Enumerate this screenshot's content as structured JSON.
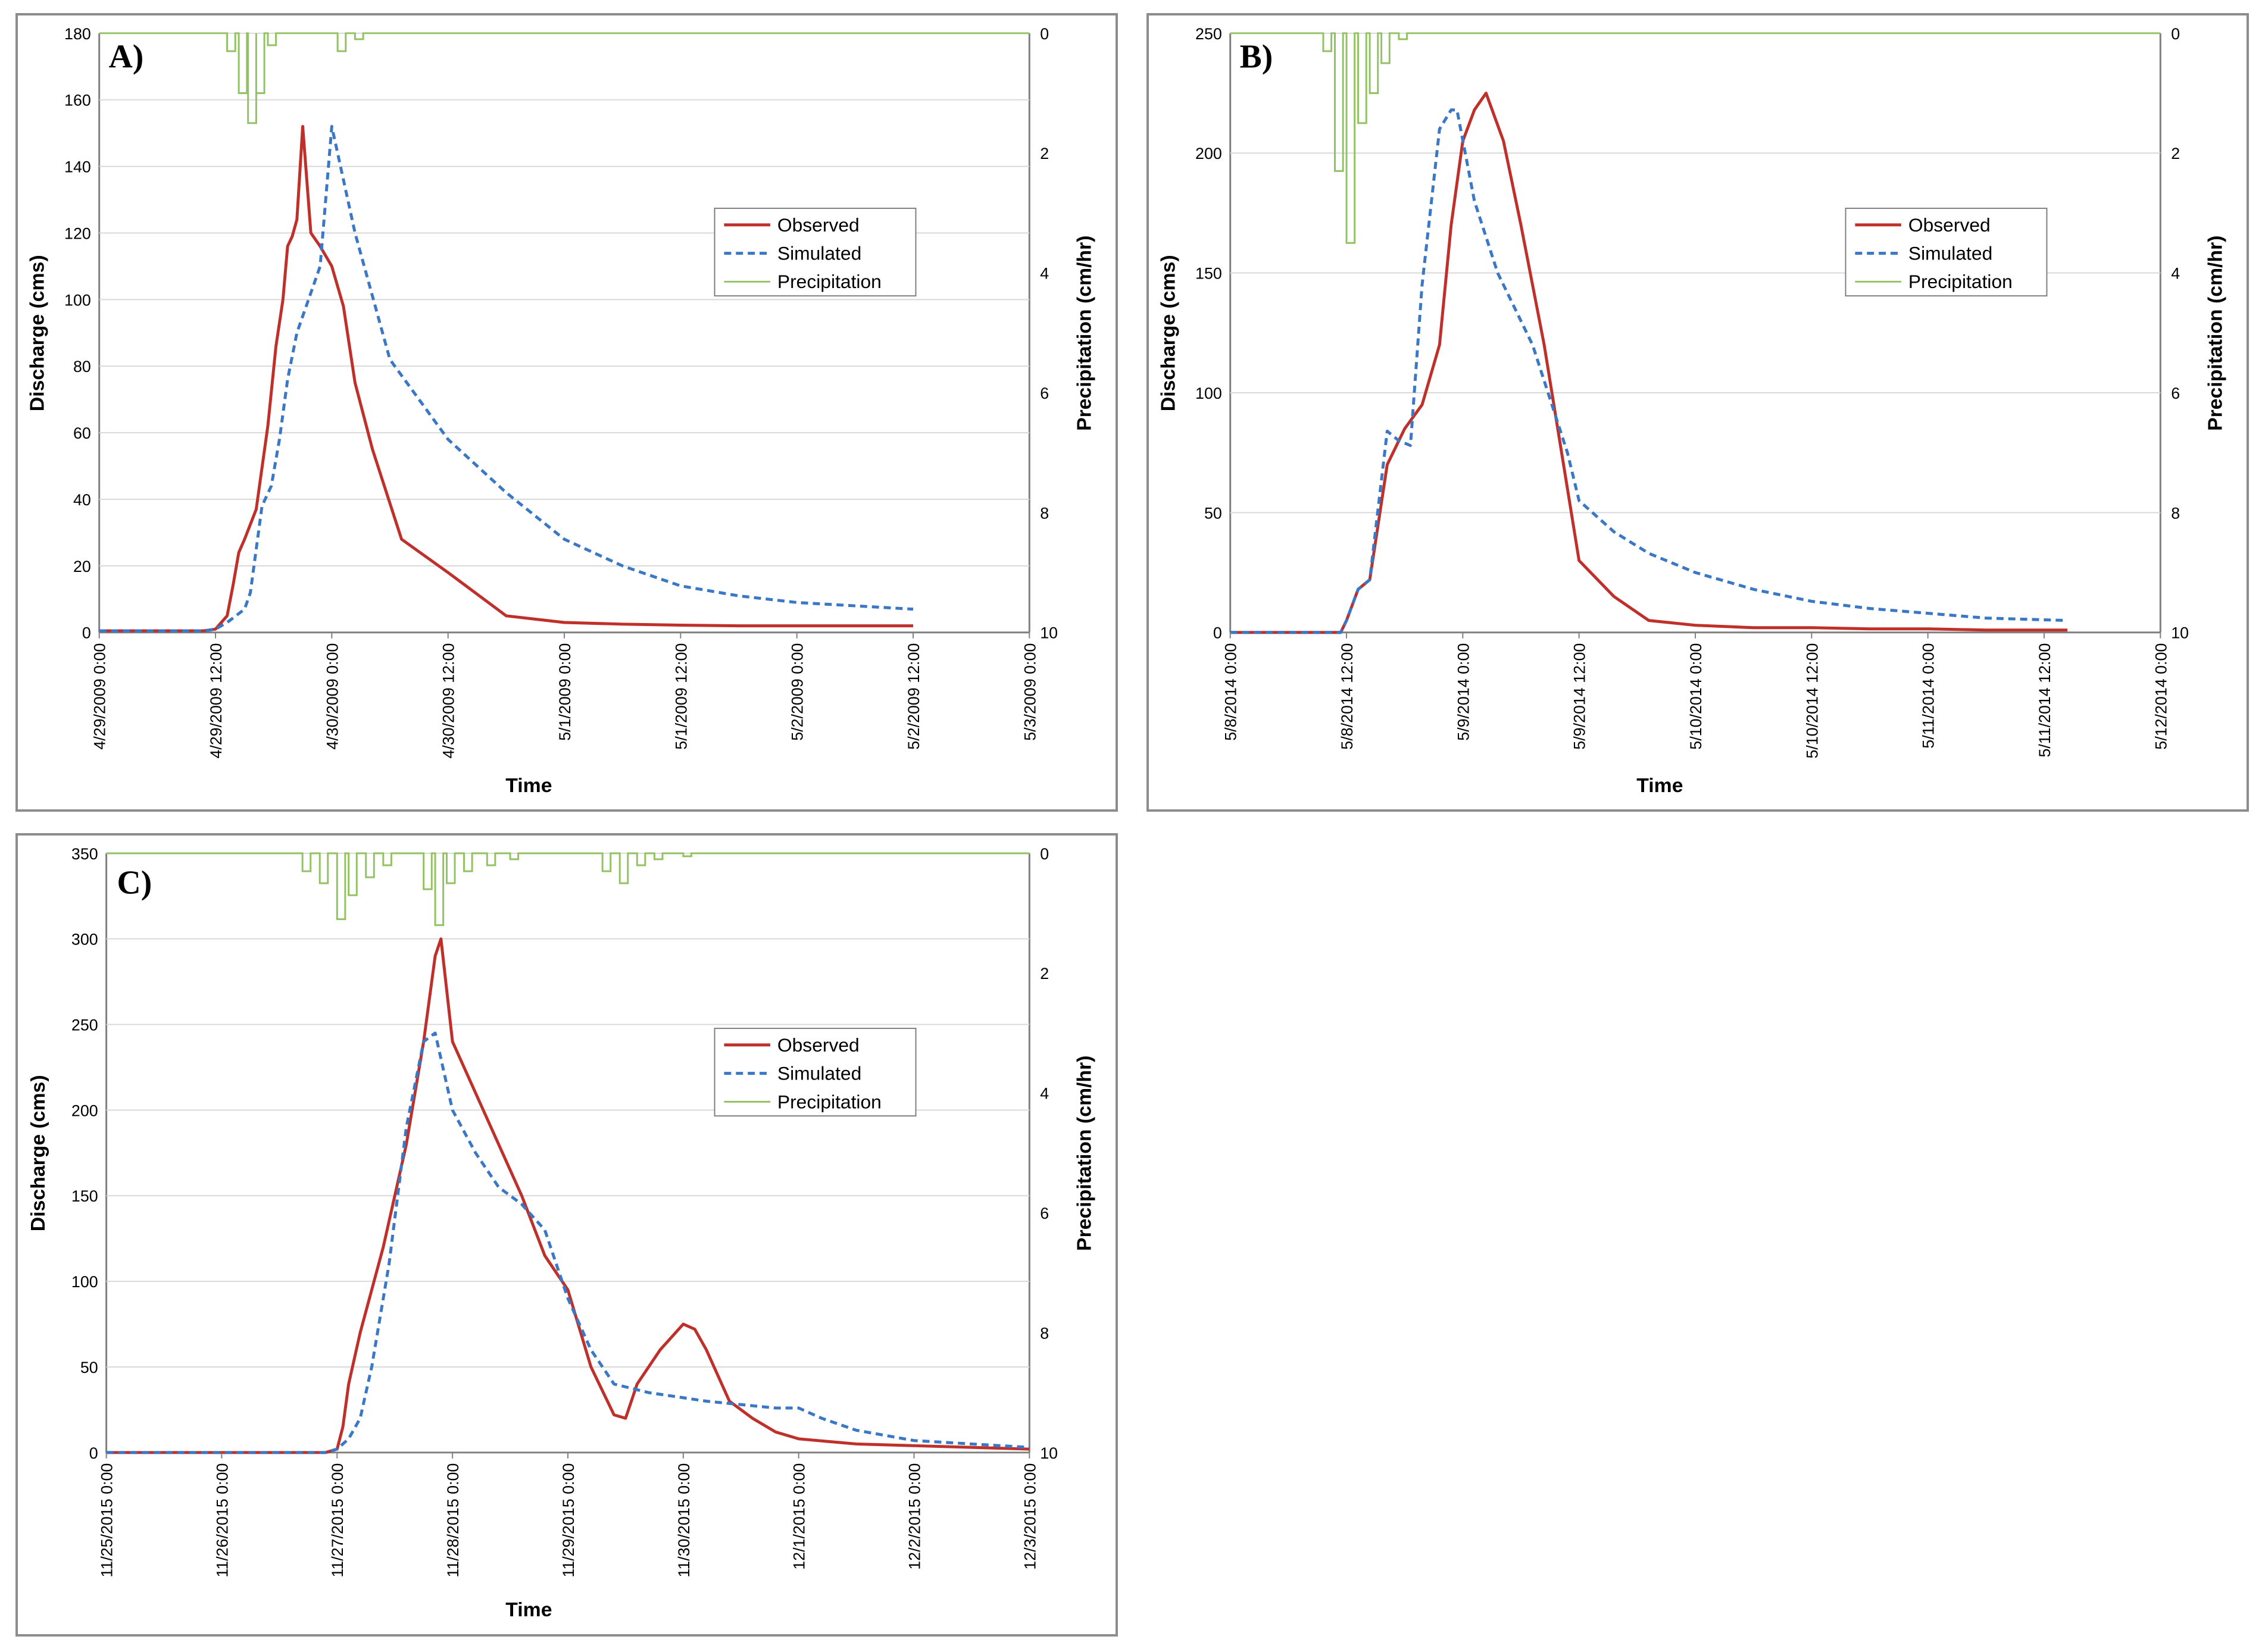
{
  "colors": {
    "observed": "#c0302b",
    "simulated": "#3a78c6",
    "precipitation": "#92c261",
    "grid": "#d9d9d9",
    "axis": "#7f7f7f"
  },
  "chart_data": [
    {
      "id": "A",
      "panel_label": "A)",
      "type": "line",
      "xlabel": "Time",
      "ylabel": "Discharge (cms)",
      "ylabel_right": "Precipitation (cm/hr)",
      "ylim": [
        0,
        180
      ],
      "yticks": [
        "0",
        "20",
        "40",
        "60",
        "80",
        "100",
        "120",
        "140",
        "160",
        "180"
      ],
      "y2lim": [
        0,
        10
      ],
      "y2ticks": [
        "0",
        "2",
        "4",
        "6",
        "8",
        "10"
      ],
      "x_tick_labels": [
        "4/29/2009 0:00",
        "4/29/2009 12:00",
        "4/30/2009 0:00",
        "4/30/2009 12:00",
        "5/1/2009 0:00",
        "5/1/2009 12:00",
        "5/2/2009 0:00",
        "5/2/2009 12:00",
        "5/3/2009 0:00"
      ],
      "legend": [
        "Observed",
        "Simulated",
        "Precipitation"
      ],
      "series": [
        {
          "name": "Observed",
          "x": [
            0,
            0.5,
            0.9,
            1.0,
            1.1,
            1.15,
            1.2,
            1.25,
            1.35,
            1.45,
            1.52,
            1.58,
            1.62,
            1.66,
            1.7,
            1.75,
            1.82,
            1.9,
            2.0,
            2.1,
            2.2,
            2.35,
            2.6,
            3.0,
            3.5,
            4.0,
            4.5,
            5.0,
            5.5,
            6.0,
            7.0
          ],
          "y": [
            0.5,
            0.5,
            0.5,
            1,
            5,
            14,
            24,
            28,
            37,
            62,
            86,
            100,
            116,
            119,
            124,
            152,
            120,
            116,
            110,
            98,
            75,
            55,
            28,
            18,
            5,
            3,
            2.5,
            2.2,
            2,
            2,
            2
          ]
        },
        {
          "name": "Simulated",
          "x": [
            0,
            0.5,
            0.9,
            1.0,
            1.1,
            1.25,
            1.3,
            1.4,
            1.48,
            1.55,
            1.62,
            1.7,
            1.8,
            1.9,
            2.0,
            2.2,
            2.5,
            3.0,
            3.5,
            4.0,
            4.5,
            5.0,
            5.5,
            6.0,
            7.0
          ],
          "y": [
            0.5,
            0.5,
            0.5,
            1,
            3,
            7,
            12,
            38,
            44,
            58,
            76,
            90,
            100,
            110,
            152,
            120,
            82,
            58,
            42,
            28,
            20,
            14,
            11,
            9,
            7
          ]
        },
        {
          "name": "Precipitation",
          "x": [
            1.1,
            1.2,
            1.28,
            1.35,
            1.45,
            2.05,
            2.2
          ],
          "y": [
            0.3,
            1.0,
            1.5,
            1.0,
            0.2,
            0.3,
            0.1
          ]
        }
      ]
    },
    {
      "id": "B",
      "panel_label": "B)",
      "type": "line",
      "xlabel": "Time",
      "ylabel": "Discharge (cms)",
      "ylabel_right": "Precipitation (cm/hr)",
      "ylim": [
        0,
        250
      ],
      "yticks": [
        "0",
        "50",
        "100",
        "150",
        "200",
        "250"
      ],
      "y2lim": [
        0,
        10
      ],
      "y2ticks": [
        "0",
        "2",
        "4",
        "6",
        "8",
        "10"
      ],
      "x_tick_labels": [
        "5/8/2014 0:00",
        "5/8/2014 12:00",
        "5/9/2014 0:00",
        "5/9/2014 12:00",
        "5/10/2014 0:00",
        "5/10/2014 12:00",
        "5/11/2014 0:00",
        "5/11/2014 12:00",
        "5/12/2014 0:00"
      ],
      "legend": [
        "Observed",
        "Simulated",
        "Precipitation"
      ],
      "series": [
        {
          "name": "Observed",
          "x": [
            0,
            0.8,
            0.95,
            1.0,
            1.1,
            1.2,
            1.35,
            1.5,
            1.65,
            1.8,
            1.9,
            2.0,
            2.1,
            2.2,
            2.35,
            2.5,
            2.7,
            2.9,
            3.0,
            3.3,
            3.6,
            4.0,
            4.5,
            5.0,
            5.5,
            6.0,
            6.5,
            7.2
          ],
          "y": [
            0,
            0,
            0,
            5,
            18,
            22,
            70,
            85,
            95,
            120,
            170,
            205,
            218,
            225,
            205,
            170,
            120,
            60,
            30,
            15,
            5,
            3,
            2,
            2,
            1.5,
            1.5,
            1,
            1
          ]
        },
        {
          "name": "Simulated",
          "x": [
            0,
            0.8,
            0.95,
            1.0,
            1.1,
            1.2,
            1.35,
            1.45,
            1.55,
            1.65,
            1.8,
            1.9,
            1.95,
            2.1,
            2.3,
            2.6,
            2.9,
            3.0,
            3.3,
            3.6,
            4.0,
            4.5,
            5.0,
            5.5,
            6.0,
            6.5,
            7.2
          ],
          "y": [
            0,
            0,
            0,
            5,
            18,
            22,
            84,
            80,
            78,
            145,
            210,
            218,
            218,
            180,
            150,
            120,
            75,
            55,
            42,
            33,
            25,
            18,
            13,
            10,
            8,
            6,
            5
          ]
        },
        {
          "name": "Precipitation",
          "x": [
            0.8,
            0.9,
            1.0,
            1.1,
            1.2,
            1.3,
            1.45
          ],
          "y": [
            0.3,
            2.3,
            3.5,
            1.5,
            1.0,
            0.5,
            0.1
          ]
        }
      ]
    },
    {
      "id": "C",
      "panel_label": "C)",
      "type": "line",
      "xlabel": "Time",
      "ylabel": "Discharge (cms)",
      "ylabel_right": "Precipitation (cm/hr)",
      "ylim": [
        0,
        350
      ],
      "yticks": [
        "0",
        "50",
        "100",
        "150",
        "200",
        "250",
        "300",
        "350"
      ],
      "y2lim": [
        0,
        10
      ],
      "y2ticks": [
        "0",
        "2",
        "4",
        "6",
        "8",
        "10"
      ],
      "x_tick_labels": [
        "11/25/2015 0:00",
        "11/26/2015 0:00",
        "11/27/2015 0:00",
        "11/28/2015 0:00",
        "11/29/2015 0:00",
        "11/30/2015 0:00",
        "12/1/2015 0:00",
        "12/2/2015 0:00",
        "12/3/2015 0:00"
      ],
      "legend": [
        "Observed",
        "Simulated",
        "Precipitation"
      ],
      "series": [
        {
          "name": "Observed",
          "x": [
            0,
            1.9,
            2.0,
            2.05,
            2.1,
            2.2,
            2.4,
            2.6,
            2.75,
            2.85,
            2.9,
            3.0,
            3.2,
            3.4,
            3.6,
            3.8,
            4.0,
            4.2,
            4.4,
            4.5,
            4.6,
            4.8,
            5.0,
            5.1,
            5.2,
            5.4,
            5.6,
            5.8,
            6.0,
            6.5,
            7.0,
            7.5,
            8.0
          ],
          "y": [
            0,
            0,
            2,
            15,
            40,
            70,
            120,
            180,
            240,
            290,
            300,
            240,
            210,
            180,
            150,
            115,
            95,
            50,
            22,
            20,
            40,
            60,
            75,
            72,
            60,
            30,
            20,
            12,
            8,
            5,
            4,
            3,
            2
          ]
        },
        {
          "name": "Simulated",
          "x": [
            0,
            1.9,
            2.0,
            2.1,
            2.2,
            2.3,
            2.45,
            2.6,
            2.75,
            2.85,
            3.0,
            3.2,
            3.4,
            3.6,
            3.8,
            4.0,
            4.2,
            4.4,
            4.7,
            5.0,
            5.2,
            5.5,
            5.8,
            6.0,
            6.2,
            6.5,
            7.0,
            7.5,
            8.0
          ],
          "y": [
            0,
            0,
            2,
            8,
            20,
            50,
            110,
            190,
            240,
            245,
            200,
            175,
            155,
            145,
            130,
            90,
            60,
            40,
            35,
            32,
            30,
            28,
            26,
            26,
            20,
            13,
            7,
            5,
            3
          ]
        },
        {
          "name": "Precipitation",
          "x": [
            1.7,
            1.85,
            2.0,
            2.1,
            2.25,
            2.4,
            2.75,
            2.85,
            2.95,
            3.1,
            3.3,
            3.5,
            4.3,
            4.45,
            4.6,
            4.75,
            5.0
          ],
          "y": [
            0.3,
            0.5,
            1.1,
            0.7,
            0.4,
            0.2,
            0.6,
            1.2,
            0.5,
            0.3,
            0.2,
            0.1,
            0.3,
            0.5,
            0.2,
            0.1,
            0.05
          ]
        }
      ]
    }
  ]
}
